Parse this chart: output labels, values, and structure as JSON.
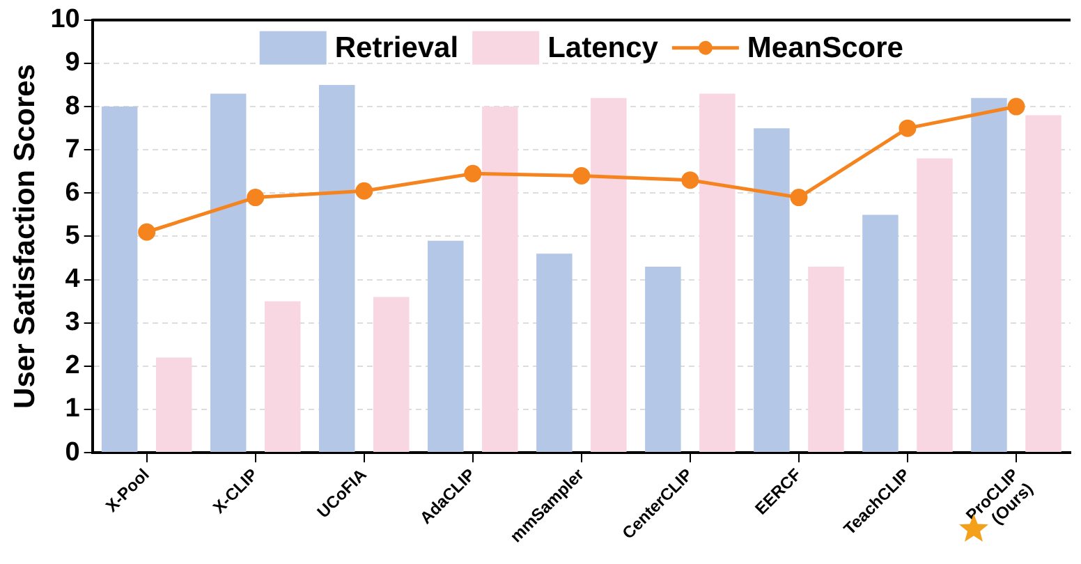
{
  "chart_data": {
    "type": "bar",
    "ylabel": "User Satisfaction Scores",
    "categories": [
      "X-Pool",
      "X-CLIP",
      "UCoFIA",
      "AdaCLIP",
      "mmSampler",
      "CenterCLIP",
      "EERCF",
      "TeachCLIP",
      "ProCLIP\n(Ours)"
    ],
    "series": [
      {
        "name": "Retrieval",
        "color": "#b4c7e7",
        "values": [
          8.0,
          8.3,
          8.5,
          4.9,
          4.6,
          4.3,
          7.5,
          5.5,
          8.2
        ]
      },
      {
        "name": "Latency",
        "color": "#f8d7e3",
        "values": [
          2.2,
          3.5,
          3.6,
          8.0,
          8.2,
          8.3,
          4.3,
          6.8,
          7.8
        ]
      },
      {
        "name": "MeanScore",
        "type": "line",
        "color": "#f5841f",
        "marker": "circle",
        "values": [
          5.1,
          5.9,
          6.05,
          6.45,
          6.4,
          6.3,
          5.9,
          7.5,
          8.0
        ]
      }
    ],
    "ylim": [
      0,
      10
    ],
    "yticks": [
      0,
      1,
      2,
      3,
      4,
      5,
      6,
      7,
      8,
      9,
      10
    ],
    "grid": "y",
    "legend": "top"
  }
}
